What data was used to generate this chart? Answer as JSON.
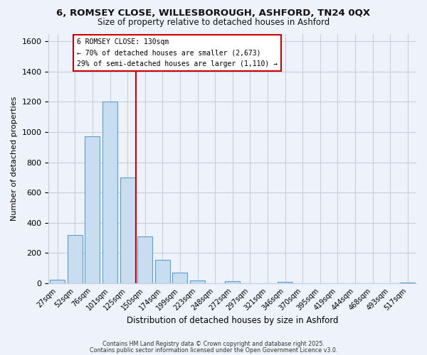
{
  "title_line1": "6, ROMSEY CLOSE, WILLESBOROUGH, ASHFORD, TN24 0QX",
  "title_line2": "Size of property relative to detached houses in Ashford",
  "xlabel": "Distribution of detached houses by size in Ashford",
  "ylabel": "Number of detached properties",
  "bar_labels": [
    "27sqm",
    "52sqm",
    "76sqm",
    "101sqm",
    "125sqm",
    "150sqm",
    "174sqm",
    "199sqm",
    "223sqm",
    "248sqm",
    "272sqm",
    "297sqm",
    "321sqm",
    "346sqm",
    "370sqm",
    "395sqm",
    "419sqm",
    "444sqm",
    "468sqm",
    "493sqm",
    "517sqm"
  ],
  "bar_heights": [
    25,
    320,
    970,
    1200,
    700,
    310,
    155,
    70,
    20,
    0,
    15,
    0,
    0,
    10,
    0,
    0,
    0,
    0,
    0,
    0,
    5
  ],
  "bar_color": "#c8ddf0",
  "bar_edge_color": "#5a9fd4",
  "ylim": [
    0,
    1650
  ],
  "yticks": [
    0,
    200,
    400,
    600,
    800,
    1000,
    1200,
    1400,
    1600
  ],
  "annotation_title": "6 ROMSEY CLOSE: 130sqm",
  "annotation_line1": "← 70% of detached houses are smaller (2,673)",
  "annotation_line2": "29% of semi-detached houses are larger (1,110) →",
  "annotation_box_color": "#ffffff",
  "annotation_box_edge_color": "#cc0000",
  "vline_color": "#cc0000",
  "vline_x": 4.5,
  "footer1": "Contains HM Land Registry data © Crown copyright and database right 2025.",
  "footer2": "Contains public sector information licensed under the Open Government Licence v3.0.",
  "bg_color": "#eef2fa",
  "grid_color": "#c8d0e0"
}
